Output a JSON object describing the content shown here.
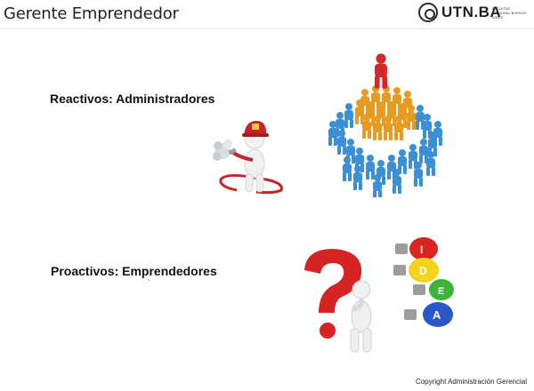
{
  "header": {
    "title": "Gerente Emprendedor",
    "logo": {
      "name": "UTN.BA",
      "subtext": "FACULTAD REGIONAL BUENOS AIRES"
    }
  },
  "labels": {
    "reactive": "Reactivos: Administradores",
    "proactive": "Proactivos: Emprendedores"
  },
  "footer": {
    "copyright": "Copyright Administración Gerencial"
  },
  "illustrations": [
    {
      "name": "firefighter-figure",
      "icon": "firefighter-hose"
    },
    {
      "name": "hierarchy-people",
      "icon": "people-pyramid",
      "colors": {
        "leader": "#d62828",
        "managers": "#e89b1e",
        "staff": "#3a8fd6"
      }
    },
    {
      "name": "question-mark-figure",
      "icon": "thinking-person"
    },
    {
      "name": "lightbulbs",
      "icon": "idea-bulbs",
      "colors": [
        "#d9241f",
        "#f2d51a",
        "#3cb43a",
        "#2a57c9"
      ],
      "letters": [
        "I",
        "D",
        "E",
        "A"
      ]
    }
  ]
}
